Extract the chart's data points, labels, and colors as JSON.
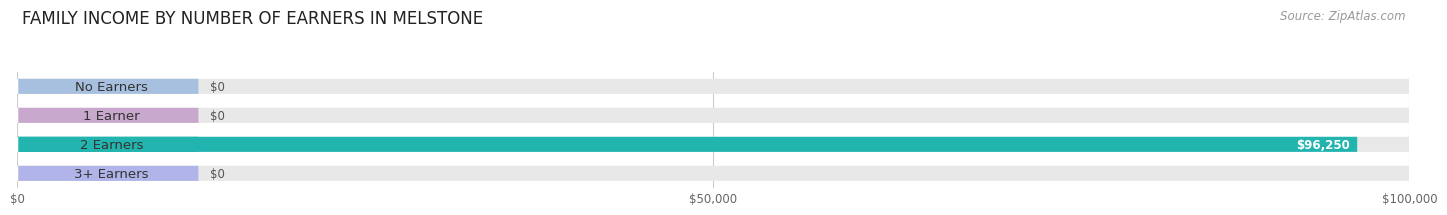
{
  "title": "FAMILY INCOME BY NUMBER OF EARNERS IN MELSTONE",
  "source": "Source: ZipAtlas.com",
  "categories": [
    "No Earners",
    "1 Earner",
    "2 Earners",
    "3+ Earners"
  ],
  "values": [
    0,
    0,
    96250,
    0
  ],
  "max_value": 100000,
  "bar_colors": [
    "#a8c0e0",
    "#c8a8cc",
    "#22b5b0",
    "#b0b4e8"
  ],
  "background_color": "#ffffff",
  "bar_bg_color": "#e8e8e8",
  "bar_height": 0.52,
  "value_label_color_nonzero": "#ffffff",
  "value_label_color_zero": "#555555",
  "xticks": [
    0,
    50000,
    100000
  ],
  "xtick_labels": [
    "$0",
    "$50,000",
    "$100,000"
  ],
  "title_fontsize": 12,
  "source_fontsize": 8.5,
  "label_fontsize": 9.5,
  "value_fontsize": 8.5,
  "tick_fontsize": 8.5
}
